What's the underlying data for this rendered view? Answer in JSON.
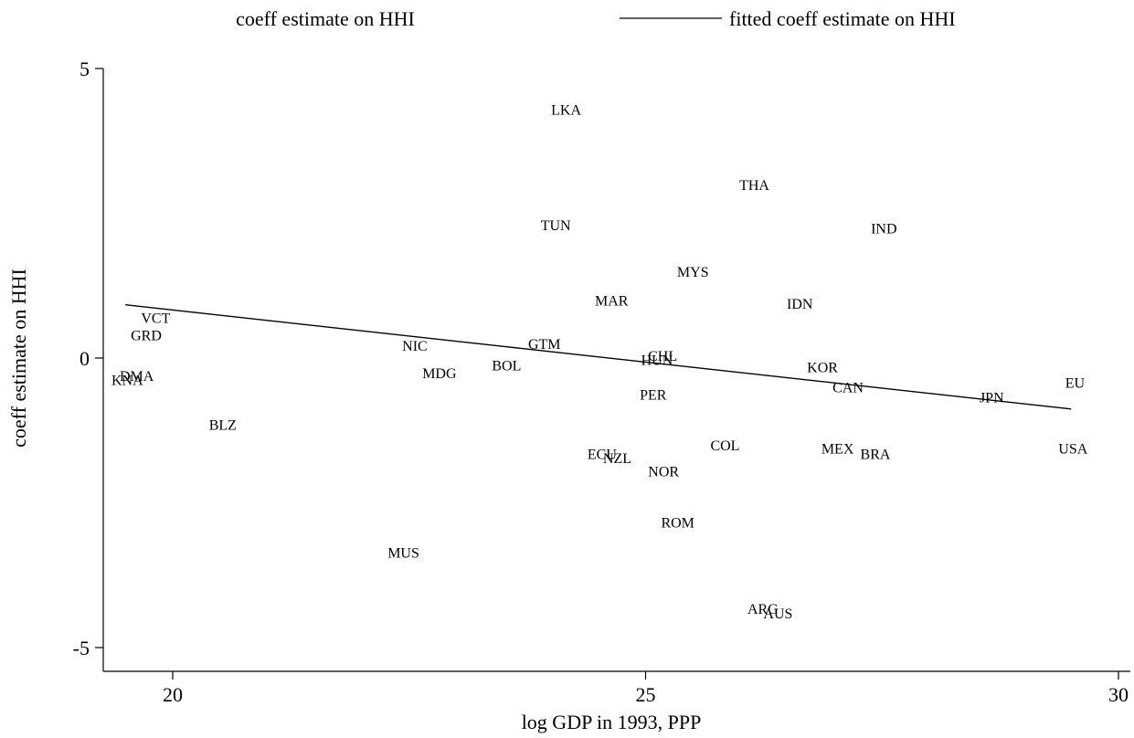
{
  "chart_data": {
    "type": "scatter",
    "title": "",
    "xlabel": "log GDP in 1993, PPP",
    "ylabel": "coeff estimate on HHI",
    "xlim": [
      19.3,
      30.2
    ],
    "ylim": [
      -5.5,
      5.5
    ],
    "xticks": [
      20,
      25,
      30
    ],
    "yticks": [
      5,
      0,
      -5
    ],
    "grid": false,
    "legend": {
      "placement": "top",
      "entries": [
        "coeff estimate on HHI",
        "fitted coeff estimate on HHI"
      ]
    },
    "series": [
      {
        "name": "coeff estimate on HHI",
        "marker": "label",
        "points": [
          {
            "label": "LKA",
            "x": 24.16,
            "y": 4.3
          },
          {
            "label": "THA",
            "x": 26.15,
            "y": 3.0
          },
          {
            "label": "TUN",
            "x": 24.05,
            "y": 2.3
          },
          {
            "label": "IND",
            "x": 27.52,
            "y": 2.25
          },
          {
            "label": "MYS",
            "x": 25.5,
            "y": 1.5
          },
          {
            "label": "MAR",
            "x": 24.64,
            "y": 1.0
          },
          {
            "label": "IDN",
            "x": 26.63,
            "y": 0.95
          },
          {
            "label": "VCT",
            "x": 19.82,
            "y": 0.7
          },
          {
            "label": "GRD",
            "x": 19.72,
            "y": 0.4
          },
          {
            "label": "NIC",
            "x": 22.56,
            "y": 0.22
          },
          {
            "label": "GTM",
            "x": 23.93,
            "y": 0.25
          },
          {
            "label": "CHL",
            "x": 25.18,
            "y": 0.05
          },
          {
            "label": "HUN",
            "x": 25.12,
            "y": -0.02
          },
          {
            "label": "BOL",
            "x": 23.53,
            "y": -0.12
          },
          {
            "label": "KOR",
            "x": 26.87,
            "y": -0.15
          },
          {
            "label": "MDG",
            "x": 22.82,
            "y": -0.25
          },
          {
            "label": "DMA",
            "x": 19.62,
            "y": -0.3
          },
          {
            "label": "KNA",
            "x": 19.52,
            "y": -0.37
          },
          {
            "label": "EU",
            "x": 29.54,
            "y": -0.42
          },
          {
            "label": "CAN",
            "x": 27.14,
            "y": -0.5
          },
          {
            "label": "PER",
            "x": 25.08,
            "y": -0.62
          },
          {
            "label": "JPN",
            "x": 28.66,
            "y": -0.67
          },
          {
            "label": "BLZ",
            "x": 20.53,
            "y": -1.14
          },
          {
            "label": "COL",
            "x": 25.84,
            "y": -1.5
          },
          {
            "label": "MEX",
            "x": 27.03,
            "y": -1.55
          },
          {
            "label": "USA",
            "x": 29.52,
            "y": -1.55
          },
          {
            "label": "BRA",
            "x": 27.43,
            "y": -1.65
          },
          {
            "label": "ECU",
            "x": 24.54,
            "y": -1.65
          },
          {
            "label": "NZL",
            "x": 24.7,
            "y": -1.72
          },
          {
            "label": "NOR",
            "x": 25.19,
            "y": -1.95
          },
          {
            "label": "ROM",
            "x": 25.34,
            "y": -2.83
          },
          {
            "label": "MUS",
            "x": 22.44,
            "y": -3.35
          },
          {
            "label": "ARG",
            "x": 26.24,
            "y": -4.32
          },
          {
            "label": "AUS",
            "x": 26.4,
            "y": -4.4
          }
        ]
      },
      {
        "name": "fitted coeff estimate on HHI",
        "type": "line",
        "x": [
          19.5,
          29.5
        ],
        "y": [
          0.92,
          -0.88
        ]
      }
    ]
  }
}
